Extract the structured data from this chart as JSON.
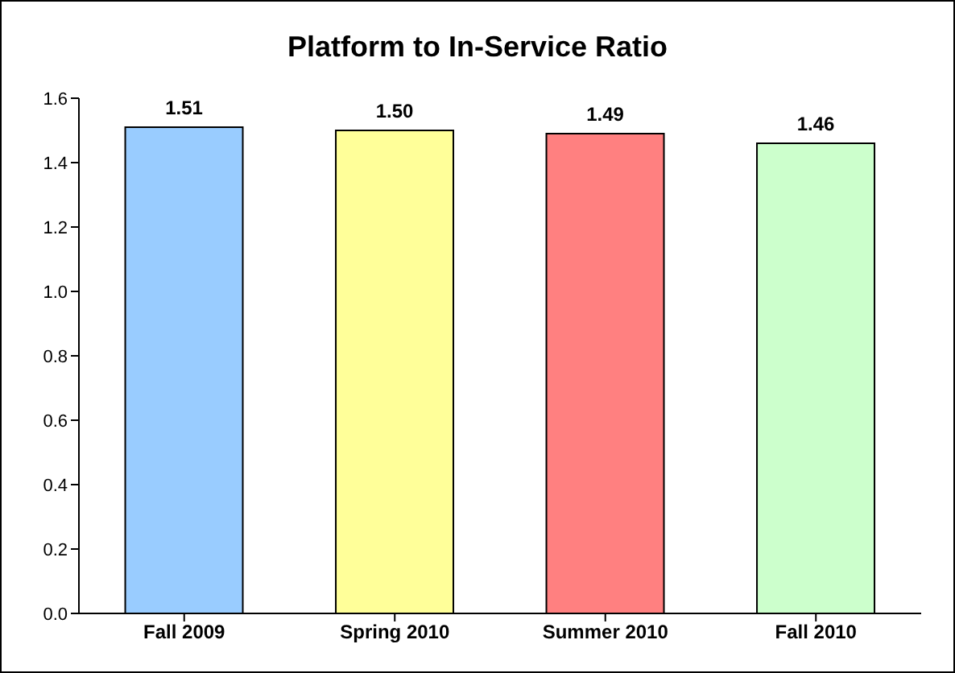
{
  "chart_data": {
    "type": "bar",
    "title": "Platform to In-Service Ratio",
    "categories": [
      "Fall 2009",
      "Spring 2010",
      "Summer 2010",
      "Fall 2010"
    ],
    "values": [
      1.51,
      1.5,
      1.49,
      1.46
    ],
    "colors": [
      "#99ccff",
      "#ffff99",
      "#ff8080",
      "#ccffcc"
    ],
    "value_labels": [
      "1.51",
      "1.50",
      "1.49",
      "1.46"
    ],
    "ylim": [
      0,
      1.6
    ],
    "yticks": [
      {
        "value": 0,
        "label": "0.0"
      },
      {
        "value": 0.2,
        "label": "0.2"
      },
      {
        "value": 0.4,
        "label": "0.4"
      },
      {
        "value": 0.6,
        "label": "0.6"
      },
      {
        "value": 0.8,
        "label": "0.8"
      },
      {
        "value": 1.0,
        "label": "1.0"
      },
      {
        "value": 1.2,
        "label": "1.2"
      },
      {
        "value": 1.4,
        "label": "1.4"
      },
      {
        "value": 1.6,
        "label": "1.6"
      }
    ],
    "grid": false,
    "legend": false
  }
}
